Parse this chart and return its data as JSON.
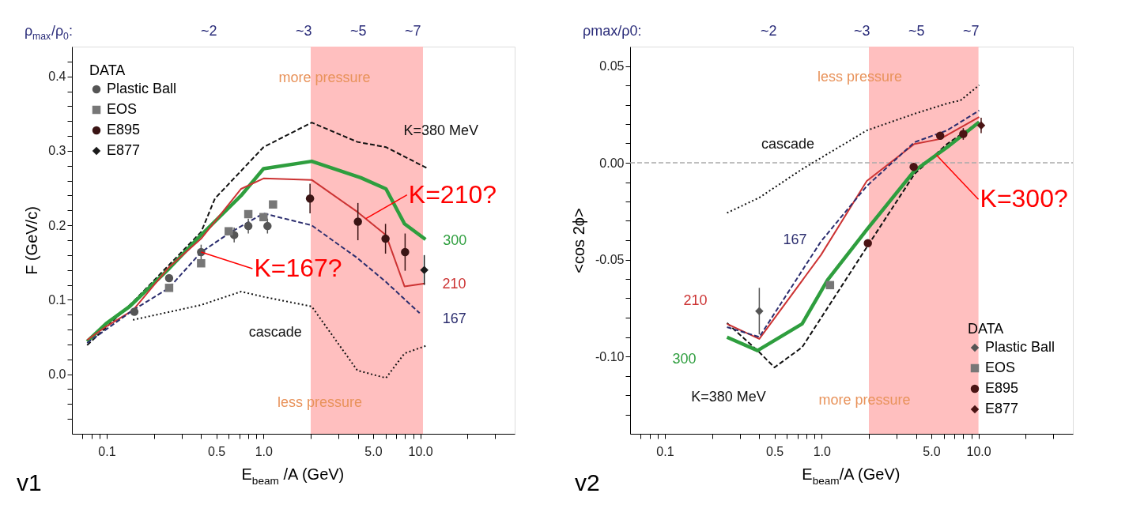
{
  "chart_data": [
    {
      "type": "line",
      "xlabel": "E$_{beam}$ /A (GeV)",
      "ylabel": "F (GeV/c)",
      "legend_title": "DATA",
      "legend": "top left",
      "log": "x",
      "grid": false,
      "xlim": [
        0.06,
        40
      ],
      "ylim": [
        -0.08,
        0.44
      ],
      "xticks": [
        {
          "value": 0.07,
          "label": null
        },
        {
          "value": 0.08,
          "label": null
        },
        {
          "value": 0.09,
          "label": null
        },
        {
          "value": 0.1,
          "label": "0.1"
        },
        {
          "value": 0.2,
          "label": null
        },
        {
          "value": 0.3,
          "label": null
        },
        {
          "value": 0.4,
          "label": null
        },
        {
          "value": 0.5,
          "label": "0.5"
        },
        {
          "value": 0.6,
          "label": null
        },
        {
          "value": 0.7,
          "label": null
        },
        {
          "value": 0.8,
          "label": null
        },
        {
          "value": 0.9,
          "label": null
        },
        {
          "value": 1,
          "label": "1.0"
        },
        {
          "value": 2,
          "label": null
        },
        {
          "value": 3,
          "label": null
        },
        {
          "value": 4,
          "label": null
        },
        {
          "value": 5,
          "label": "5.0"
        },
        {
          "value": 6,
          "label": null
        },
        {
          "value": 7,
          "label": null
        },
        {
          "value": 8,
          "label": null
        },
        {
          "value": 9,
          "label": null
        },
        {
          "value": 10,
          "label": "10.0"
        },
        {
          "value": 20,
          "label": null
        },
        {
          "value": 30,
          "label": null
        }
      ],
      "yticks": [
        {
          "value": -0.06,
          "label": null
        },
        {
          "value": -0.04,
          "label": null
        },
        {
          "value": -0.02,
          "label": null
        },
        {
          "value": 0,
          "label": "0.0"
        },
        {
          "value": 0.02,
          "label": null
        },
        {
          "value": 0.04,
          "label": null
        },
        {
          "value": 0.06,
          "label": null
        },
        {
          "value": 0.08,
          "label": null
        },
        0.1,
        {
          "value": 0.12,
          "label": null
        },
        {
          "value": 0.14,
          "label": null
        },
        {
          "value": 0.16,
          "label": null
        },
        {
          "value": 0.18,
          "label": null
        },
        0.2,
        {
          "value": 0.22,
          "label": null
        },
        {
          "value": 0.24,
          "label": null
        },
        {
          "value": 0.26,
          "label": null
        },
        {
          "value": 0.28,
          "label": null
        },
        0.3,
        {
          "value": 0.32,
          "label": null
        },
        {
          "value": 0.34,
          "label": null
        },
        {
          "value": 0.36,
          "label": null
        },
        {
          "value": 0.38,
          "label": null
        },
        0.4,
        {
          "value": 0.42,
          "label": null
        }
      ],
      "bands": [
        {
          "axis": "x",
          "from": 2,
          "to": 10.4,
          "color": "#ffbcbc"
        }
      ],
      "series": [
        {
          "name": "K=380 MeV",
          "line_style": "dashed",
          "color": "#111111",
          "x": [
            0.075,
            0.147,
            0.4,
            0.49,
            1.0,
            2.03,
            3.97,
            6.04,
            11.0
          ],
          "values": [
            0.039,
            0.097,
            0.191,
            0.236,
            0.305,
            0.338,
            0.312,
            0.305,
            0.277
          ]
        },
        {
          "name": "300",
          "line_style": "solid",
          "color": "#2e9e3e",
          "x": [
            0.075,
            0.099,
            0.14,
            0.25,
            0.4,
            0.72,
            1.0,
            2.03,
            4.17,
            6.04,
            7.93,
            10.8
          ],
          "values": [
            0.044,
            0.068,
            0.091,
            0.142,
            0.187,
            0.24,
            0.276,
            0.286,
            0.264,
            0.249,
            0.202,
            0.181
          ]
        },
        {
          "name": "210",
          "line_style": "solid",
          "color": "#cc3333",
          "x": [
            0.075,
            0.099,
            0.147,
            0.25,
            0.4,
            0.72,
            1.0,
            2.03,
            3.97,
            6.04,
            7.93,
            10.7
          ],
          "values": [
            0.046,
            0.064,
            0.086,
            0.144,
            0.182,
            0.249,
            0.263,
            0.261,
            0.218,
            0.187,
            0.118,
            0.122
          ]
        },
        {
          "name": "167",
          "line_style": "dashed",
          "color": "#2b2d6e",
          "x": [
            0.075,
            0.147,
            0.25,
            0.4,
            0.62,
            1.0,
            2.03,
            3.97,
            6.04,
            9.9
          ],
          "values": [
            0.042,
            0.086,
            0.116,
            0.164,
            0.191,
            0.216,
            0.2,
            0.156,
            0.124,
            0.082
          ]
        },
        {
          "name": "cascade",
          "line_style": "dotted",
          "color": "#111111",
          "x": [
            0.147,
            0.4,
            0.72,
            1.0,
            2.03,
            3.97,
            6.04,
            7.93,
            10.8
          ],
          "values": [
            0.073,
            0.093,
            0.111,
            0.104,
            0.091,
            0.005,
            -0.005,
            0.028,
            0.038
          ]
        },
        {
          "name": "Plastic Ball",
          "type": "scatter",
          "marker": "circle",
          "color": "#555555",
          "x": [
            0.15,
            0.25,
            0.4,
            0.65,
            0.8,
            1.06
          ],
          "values": [
            0.084,
            0.129,
            0.164,
            0.187,
            0.199,
            0.199
          ],
          "errors": [
            null,
            null,
            0.01,
            0.01,
            0.01,
            0.01
          ]
        },
        {
          "name": "EOS",
          "type": "scatter",
          "marker": "square",
          "color": "#777777",
          "x": [
            0.25,
            0.4,
            0.6,
            0.8,
            1.0,
            1.15
          ],
          "values": [
            0.116,
            0.149,
            0.192,
            0.215,
            0.211,
            0.228
          ]
        },
        {
          "name": "E895",
          "type": "scatter",
          "marker": "circle",
          "color": "#3a1414",
          "x": [
            1.98,
            4.0,
            6.0,
            8.0
          ],
          "values": [
            0.236,
            0.205,
            0.182,
            0.164
          ],
          "errors": [
            0.02,
            0.025,
            0.02,
            0.025
          ]
        },
        {
          "name": "E877",
          "type": "scatter",
          "marker": "diamond",
          "color": "#1a1a1a",
          "x": [
            10.6
          ],
          "values": [
            0.14
          ],
          "errors": [
            0.02
          ]
        }
      ],
      "annotations": [
        "ρ$_{max}$/ρ$_{0}$:",
        "~2",
        "~3",
        "~5",
        "~7",
        "more pressure",
        "less pressure",
        {
          "text": "K=210?",
          "x": 4.5,
          "y": 0.209
        },
        {
          "text": "K=167?",
          "x": 0.4,
          "y": 0.164
        },
        "v1"
      ]
    },
    {
      "type": "line",
      "xlabel": "E$_{beam}$/A (GeV)",
      "ylabel": "<cos 2ϕ>",
      "legend_title": "DATA",
      "legend": "bottom right",
      "log": "x",
      "grid": false,
      "xlim": [
        0.06,
        40
      ],
      "ylim": [
        -0.14,
        0.06
      ],
      "xticks": [
        {
          "value": 0.07,
          "label": null
        },
        {
          "value": 0.08,
          "label": null
        },
        {
          "value": 0.09,
          "label": null
        },
        {
          "value": 0.1,
          "label": "0.1"
        },
        {
          "value": 0.2,
          "label": null
        },
        {
          "value": 0.3,
          "label": null
        },
        {
          "value": 0.4,
          "label": null
        },
        {
          "value": 0.5,
          "label": "0.5"
        },
        {
          "value": 0.6,
          "label": null
        },
        {
          "value": 0.7,
          "label": null
        },
        {
          "value": 0.8,
          "label": null
        },
        {
          "value": 0.9,
          "label": null
        },
        {
          "value": 1,
          "label": "1.0"
        },
        {
          "value": 2,
          "label": null
        },
        {
          "value": 3,
          "label": null
        },
        {
          "value": 4,
          "label": null
        },
        {
          "value": 5,
          "label": "5.0"
        },
        {
          "value": 6,
          "label": null
        },
        {
          "value": 7,
          "label": null
        },
        {
          "value": 8,
          "label": null
        },
        {
          "value": 9,
          "label": null
        },
        {
          "value": 10,
          "label": "10.0"
        },
        {
          "value": 20,
          "label": null
        },
        {
          "value": 30,
          "label": null
        }
      ],
      "yticks": [
        {
          "value": -0.13,
          "label": null
        },
        {
          "value": -0.12,
          "label": null
        },
        {
          "value": -0.11,
          "label": null
        },
        {
          "value": -0.1,
          "label": "-0.10"
        },
        {
          "value": -0.09,
          "label": null
        },
        {
          "value": -0.08,
          "label": null
        },
        {
          "value": -0.07,
          "label": null
        },
        {
          "value": -0.06,
          "label": null
        },
        {
          "value": -0.05,
          "label": "-0.05"
        },
        {
          "value": -0.04,
          "label": null
        },
        {
          "value": -0.03,
          "label": null
        },
        {
          "value": -0.02,
          "label": null
        },
        {
          "value": -0.01,
          "label": null
        },
        {
          "value": 0,
          "label": "0.00"
        },
        {
          "value": 0.01,
          "label": null
        },
        {
          "value": 0.02,
          "label": null
        },
        {
          "value": 0.03,
          "label": null
        },
        {
          "value": 0.04,
          "label": null
        },
        0.05
      ],
      "bands": [
        {
          "axis": "x",
          "from": 2,
          "to": 10,
          "color": "#ffbcbc"
        }
      ],
      "ref_lines": [
        {
          "axis": "y",
          "value": 0,
          "color": "#aaaaaa",
          "line_style": "dashed"
        }
      ],
      "series": [
        {
          "name": "K=380 MeV",
          "line_style": "dashed",
          "color": "#111111",
          "x": [
            0.249,
            0.39,
            0.5,
            0.75,
            1.89,
            3.9,
            6.3,
            10.1
          ],
          "values": [
            -0.0828,
            -0.097,
            -0.1057,
            -0.0953,
            -0.045,
            -0.0059,
            0.0097,
            0.021
          ]
        },
        {
          "name": "300",
          "line_style": "solid",
          "color": "#2e9e3e",
          "x": [
            0.249,
            0.39,
            0.75,
            1.09,
            1.94,
            3.9,
            6.3,
            10.1
          ],
          "values": [
            -0.0901,
            -0.097,
            -0.0832,
            -0.0606,
            -0.0345,
            -0.0042,
            0.008,
            0.021
          ]
        },
        {
          "name": "210",
          "line_style": "solid",
          "color": "#cc3333",
          "x": [
            0.249,
            0.4,
            0.99,
            1.94,
            3.9,
            5.7,
            10.1
          ],
          "values": [
            -0.0832,
            -0.091,
            -0.0476,
            -0.0094,
            0.0097,
            0.0123,
            0.0236
          ]
        },
        {
          "name": "167",
          "line_style": "dashed",
          "color": "#2b2d6e",
          "x": [
            0.249,
            0.4,
            0.99,
            1.94,
            3.9,
            6.3,
            10.1
          ],
          "values": [
            -0.0849,
            -0.09,
            -0.0406,
            -0.012,
            0.0106,
            0.0167,
            0.027
          ]
        },
        {
          "name": "cascade",
          "line_style": "dotted",
          "color": "#111111",
          "x": [
            0.249,
            0.4,
            0.75,
            1.94,
            3.9,
            6.3,
            7.7,
            10.1
          ],
          "values": [
            -0.0259,
            -0.018,
            -0.0033,
            0.0167,
            0.0253,
            0.0306,
            0.0323,
            0.0401
          ]
        },
        {
          "name": "Plastic Ball",
          "type": "scatter",
          "marker": "diamond",
          "color": "#555555",
          "x": [
            0.4
          ],
          "values": [
            -0.0766
          ],
          "errors": [
            0.012
          ]
        },
        {
          "name": "EOS",
          "type": "scatter",
          "marker": "square",
          "color": "#777777",
          "x": [
            1.13
          ],
          "values": [
            -0.0632
          ]
        },
        {
          "name": "E895",
          "type": "scatter",
          "marker": "circle",
          "color": "#4a1414",
          "x": [
            1.97,
            3.86,
            5.7,
            8.0
          ],
          "values": [
            -0.0415,
            -0.0021,
            0.014,
            0.0149
          ],
          "errors": [
            null,
            null,
            null,
            0.003
          ]
        },
        {
          "name": "E877",
          "type": "scatter",
          "marker": "diamond",
          "color": "#4a1414",
          "x": [
            10.4
          ],
          "values": [
            0.0193
          ],
          "errors": [
            0.004
          ]
        }
      ],
      "annotations": [
        "ρmax/ρ0:",
        "~2",
        "~3",
        "~5",
        "~7",
        "less pressure",
        "more pressure",
        {
          "text": "K=300?",
          "x": 5.4,
          "y": 0.004
        },
        "v2"
      ]
    }
  ]
}
